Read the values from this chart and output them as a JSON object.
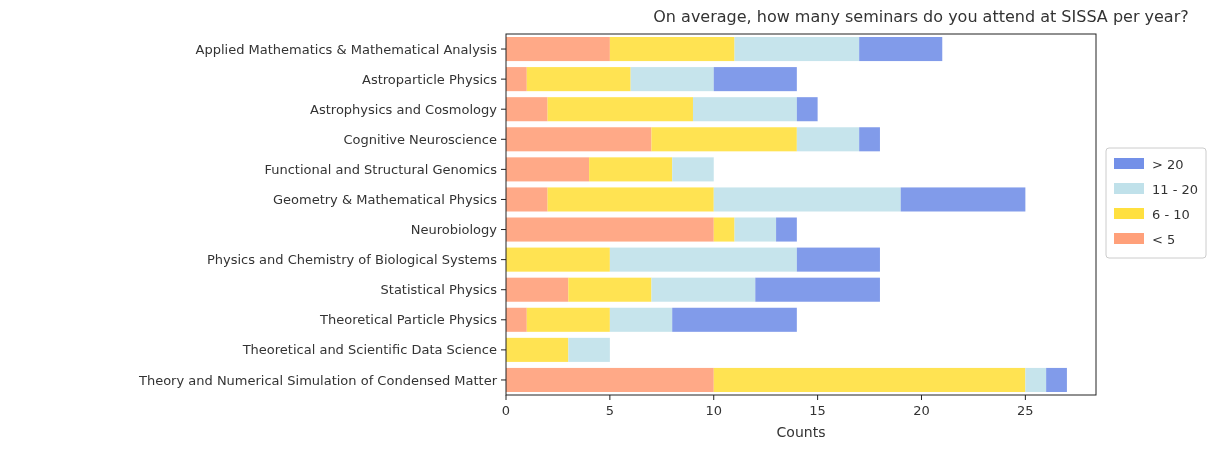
{
  "chart_data": {
    "type": "bar",
    "orientation": "horizontal",
    "stacked": true,
    "title": "On average, how many seminars do you attend at SISSA per year?",
    "xlabel": "Counts",
    "categories": [
      "Applied Mathematics & Mathematical Analysis",
      "Astroparticle Physics",
      "Astrophysics and Cosmology",
      "Cognitive Neuroscience",
      "Functional and Structural Genomics",
      "Geometry & Mathematical Physics",
      "Neurobiology",
      "Physics and Chemistry of Biological Systems",
      "Statistical Physics",
      "Theoretical Particle Physics",
      "Theoretical and Scientific Data Science",
      "Theory and Numerical Simulation of Condensed Matter"
    ],
    "series": [
      {
        "name": "< 5",
        "color": "#ffa07a",
        "values": [
          5,
          1,
          2,
          7,
          4,
          2,
          10,
          0,
          3,
          1,
          0,
          10
        ]
      },
      {
        "name": "6 - 10",
        "color": "#ffe03f",
        "values": [
          6,
          5,
          7,
          7,
          4,
          8,
          1,
          5,
          4,
          4,
          3,
          15
        ]
      },
      {
        "name": "11 - 20",
        "color": "#c0e1ea",
        "values": [
          6,
          4,
          5,
          3,
          2,
          9,
          2,
          9,
          5,
          3,
          2,
          1
        ]
      },
      {
        "name": "> 20",
        "color": "#7390e8",
        "values": [
          4,
          4,
          1,
          1,
          0,
          6,
          1,
          4,
          6,
          6,
          0,
          1
        ]
      }
    ],
    "xlim": [
      0,
      28.4
    ],
    "xticks": [
      0,
      5,
      10,
      15,
      20,
      25
    ],
    "legend": "right",
    "grid": false
  }
}
